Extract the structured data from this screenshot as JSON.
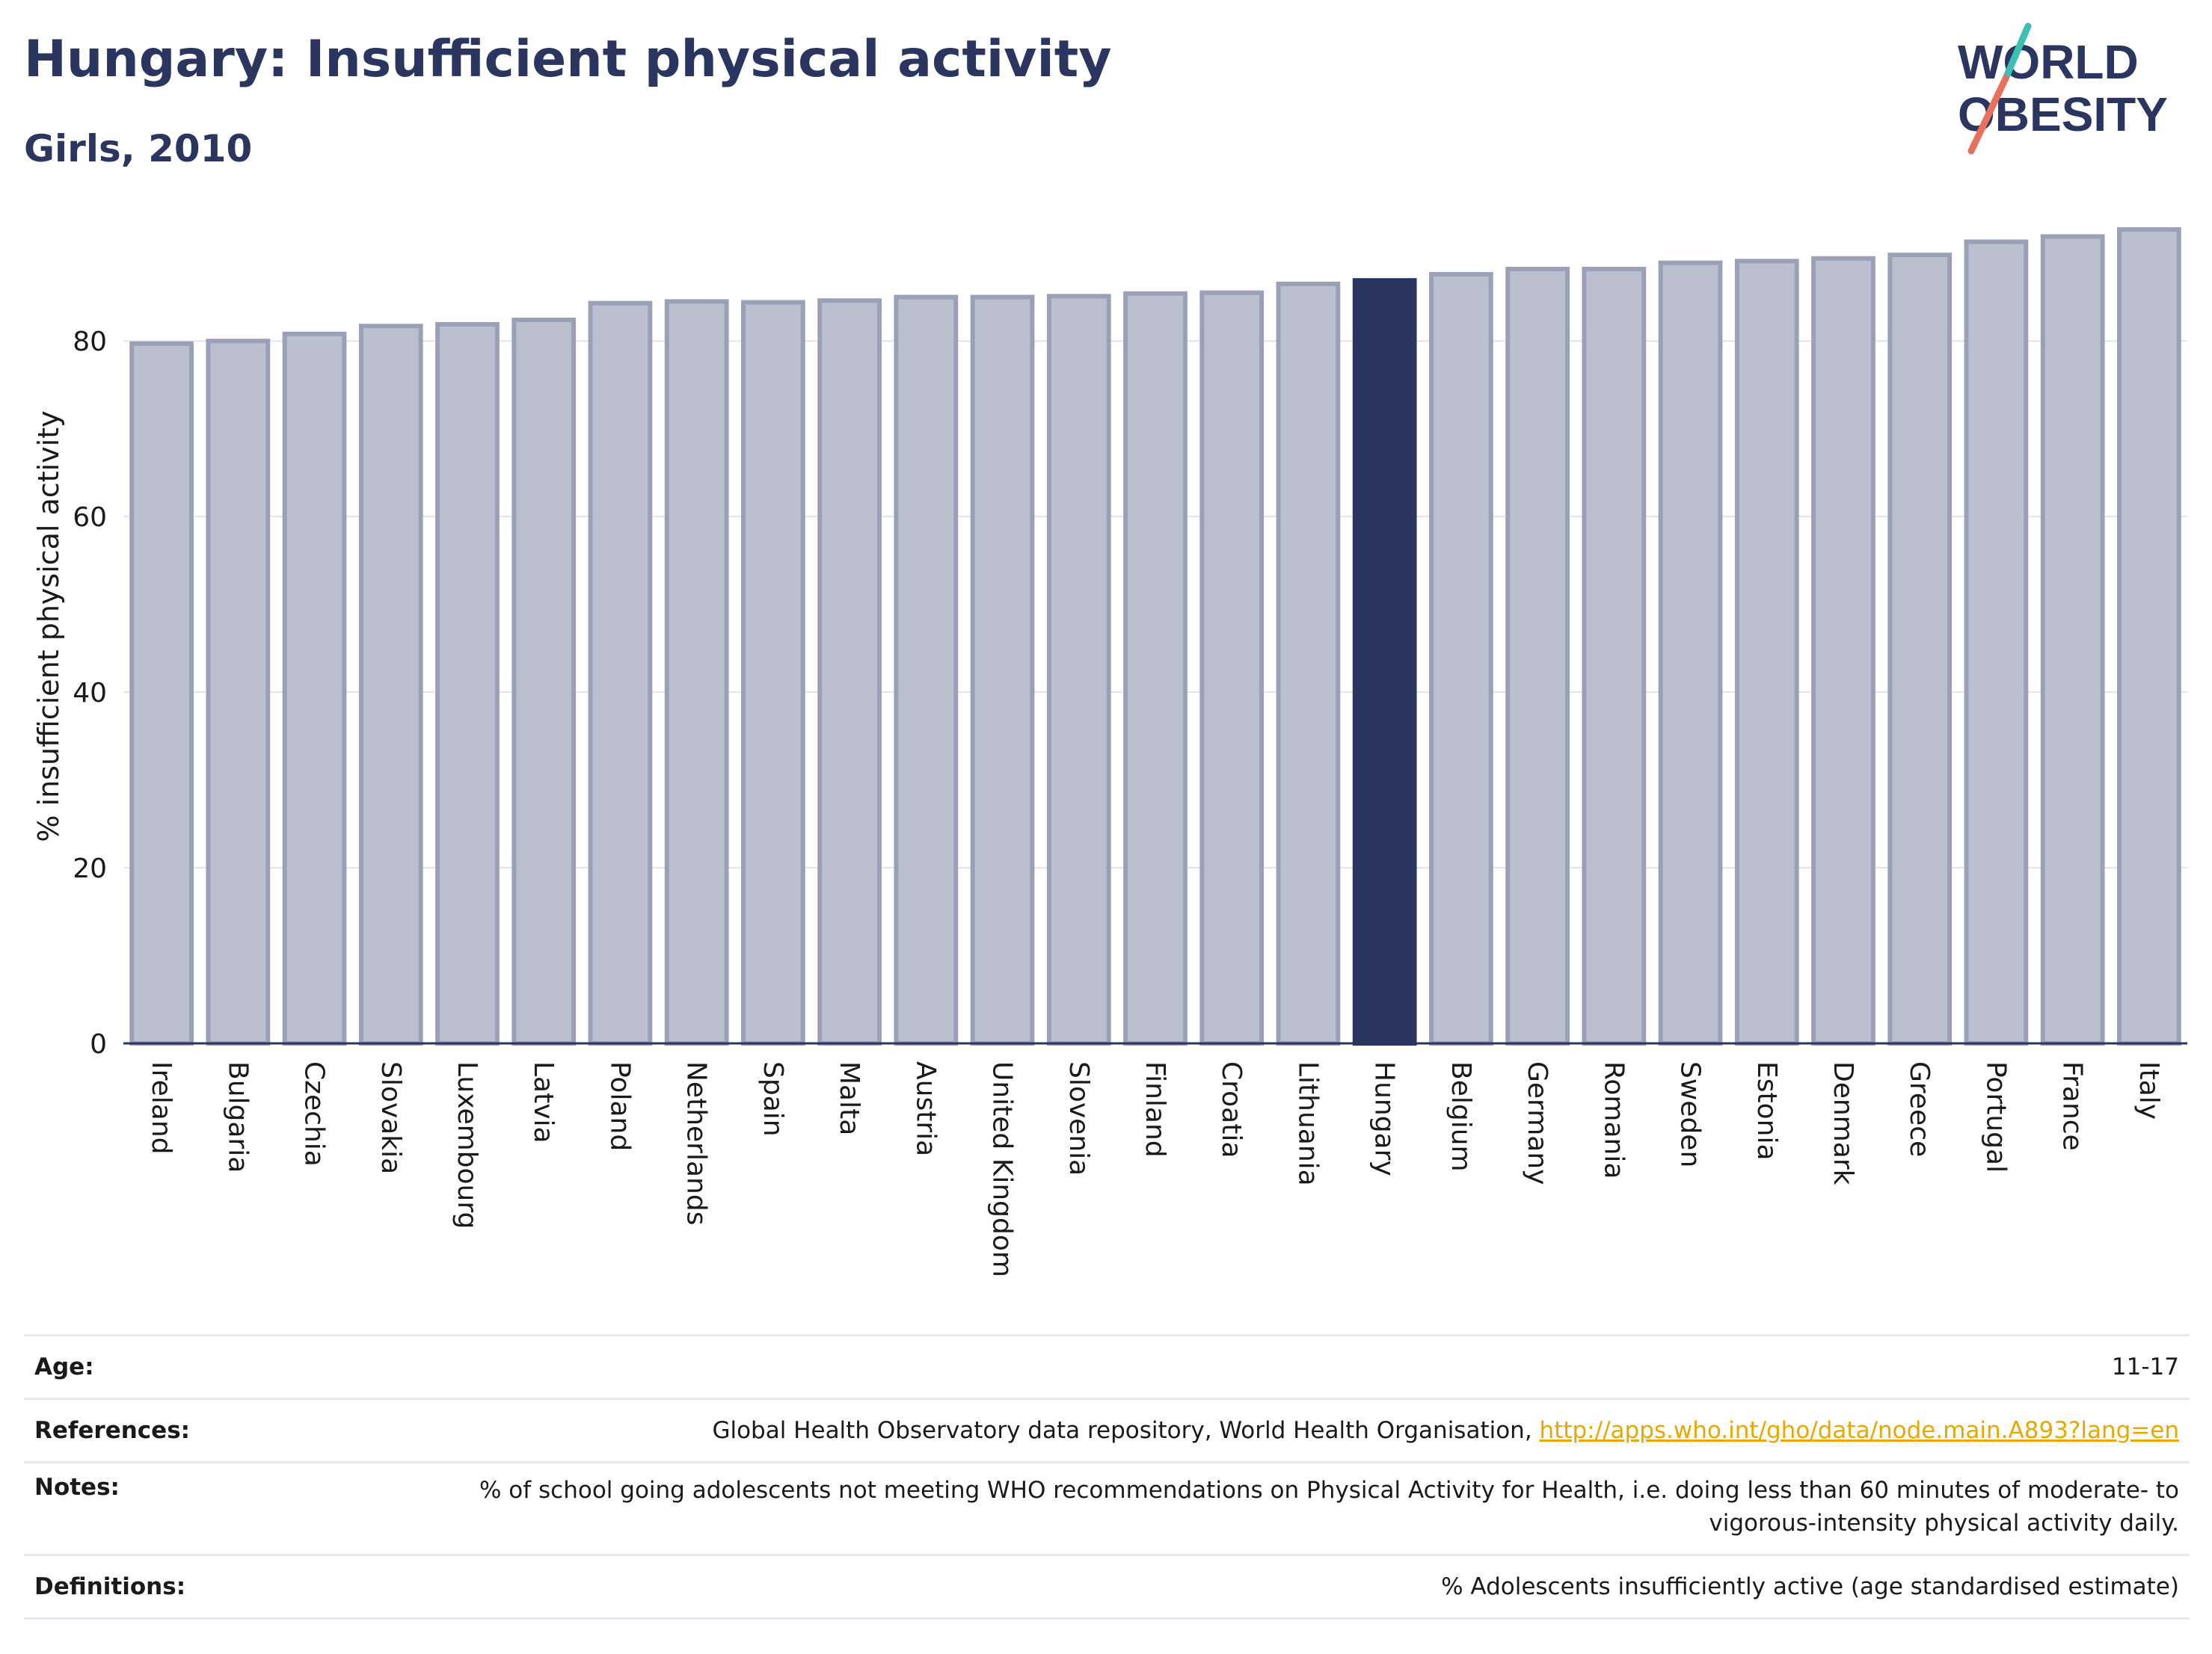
{
  "header": {
    "title": "Hungary: Insufficient physical activity",
    "subtitle": "Girls, 2010"
  },
  "logo": {
    "line1": "WORLD",
    "line2": "OBESITY"
  },
  "colors": {
    "bar": "#bcc0ce",
    "bar_stroke": "#9aa0b8",
    "highlight": "#2a3560",
    "text": "#2a3560"
  },
  "chart_data": {
    "type": "bar",
    "ylabel": "% insufficient physical activity",
    "xlabel": "",
    "ylim": [
      0,
      95
    ],
    "yticks": [
      0,
      20,
      40,
      60,
      80
    ],
    "grid": true,
    "highlight": "Hungary",
    "categories": [
      "Ireland",
      "Bulgaria",
      "Czechia",
      "Slovakia",
      "Luxembourg",
      "Latvia",
      "Poland",
      "Netherlands",
      "Spain",
      "Malta",
      "Austria",
      "United Kingdom",
      "Slovenia",
      "Finland",
      "Croatia",
      "Lithuania",
      "Hungary",
      "Belgium",
      "Germany",
      "Romania",
      "Sweden",
      "Estonia",
      "Denmark",
      "Greece",
      "Portugal",
      "France",
      "Italy"
    ],
    "values": [
      79.7,
      80.0,
      80.8,
      81.7,
      81.9,
      82.4,
      84.3,
      84.5,
      84.4,
      84.6,
      85.0,
      85.0,
      85.1,
      85.4,
      85.5,
      86.5,
      86.9,
      87.6,
      88.2,
      88.2,
      88.9,
      89.1,
      89.4,
      89.8,
      91.3,
      91.9,
      92.7
    ]
  },
  "footer": {
    "age": {
      "label": "Age:",
      "value": "11-17"
    },
    "references": {
      "label": "References:",
      "text": "Global Health Observatory data repository, World Health Organisation, ",
      "link": "http://apps.who.int/gho/data/node.main.A893?lang=en"
    },
    "notes": {
      "label": "Notes:",
      "value": "% of school going adolescents not meeting WHO recommendations on Physical Activity for Health, i.e. doing less than 60 minutes of moderate- to vigorous-intensity physical activity daily."
    },
    "definitions": {
      "label": "Definitions:",
      "value": "% Adolescents insufficiently active (age standardised estimate)"
    }
  }
}
